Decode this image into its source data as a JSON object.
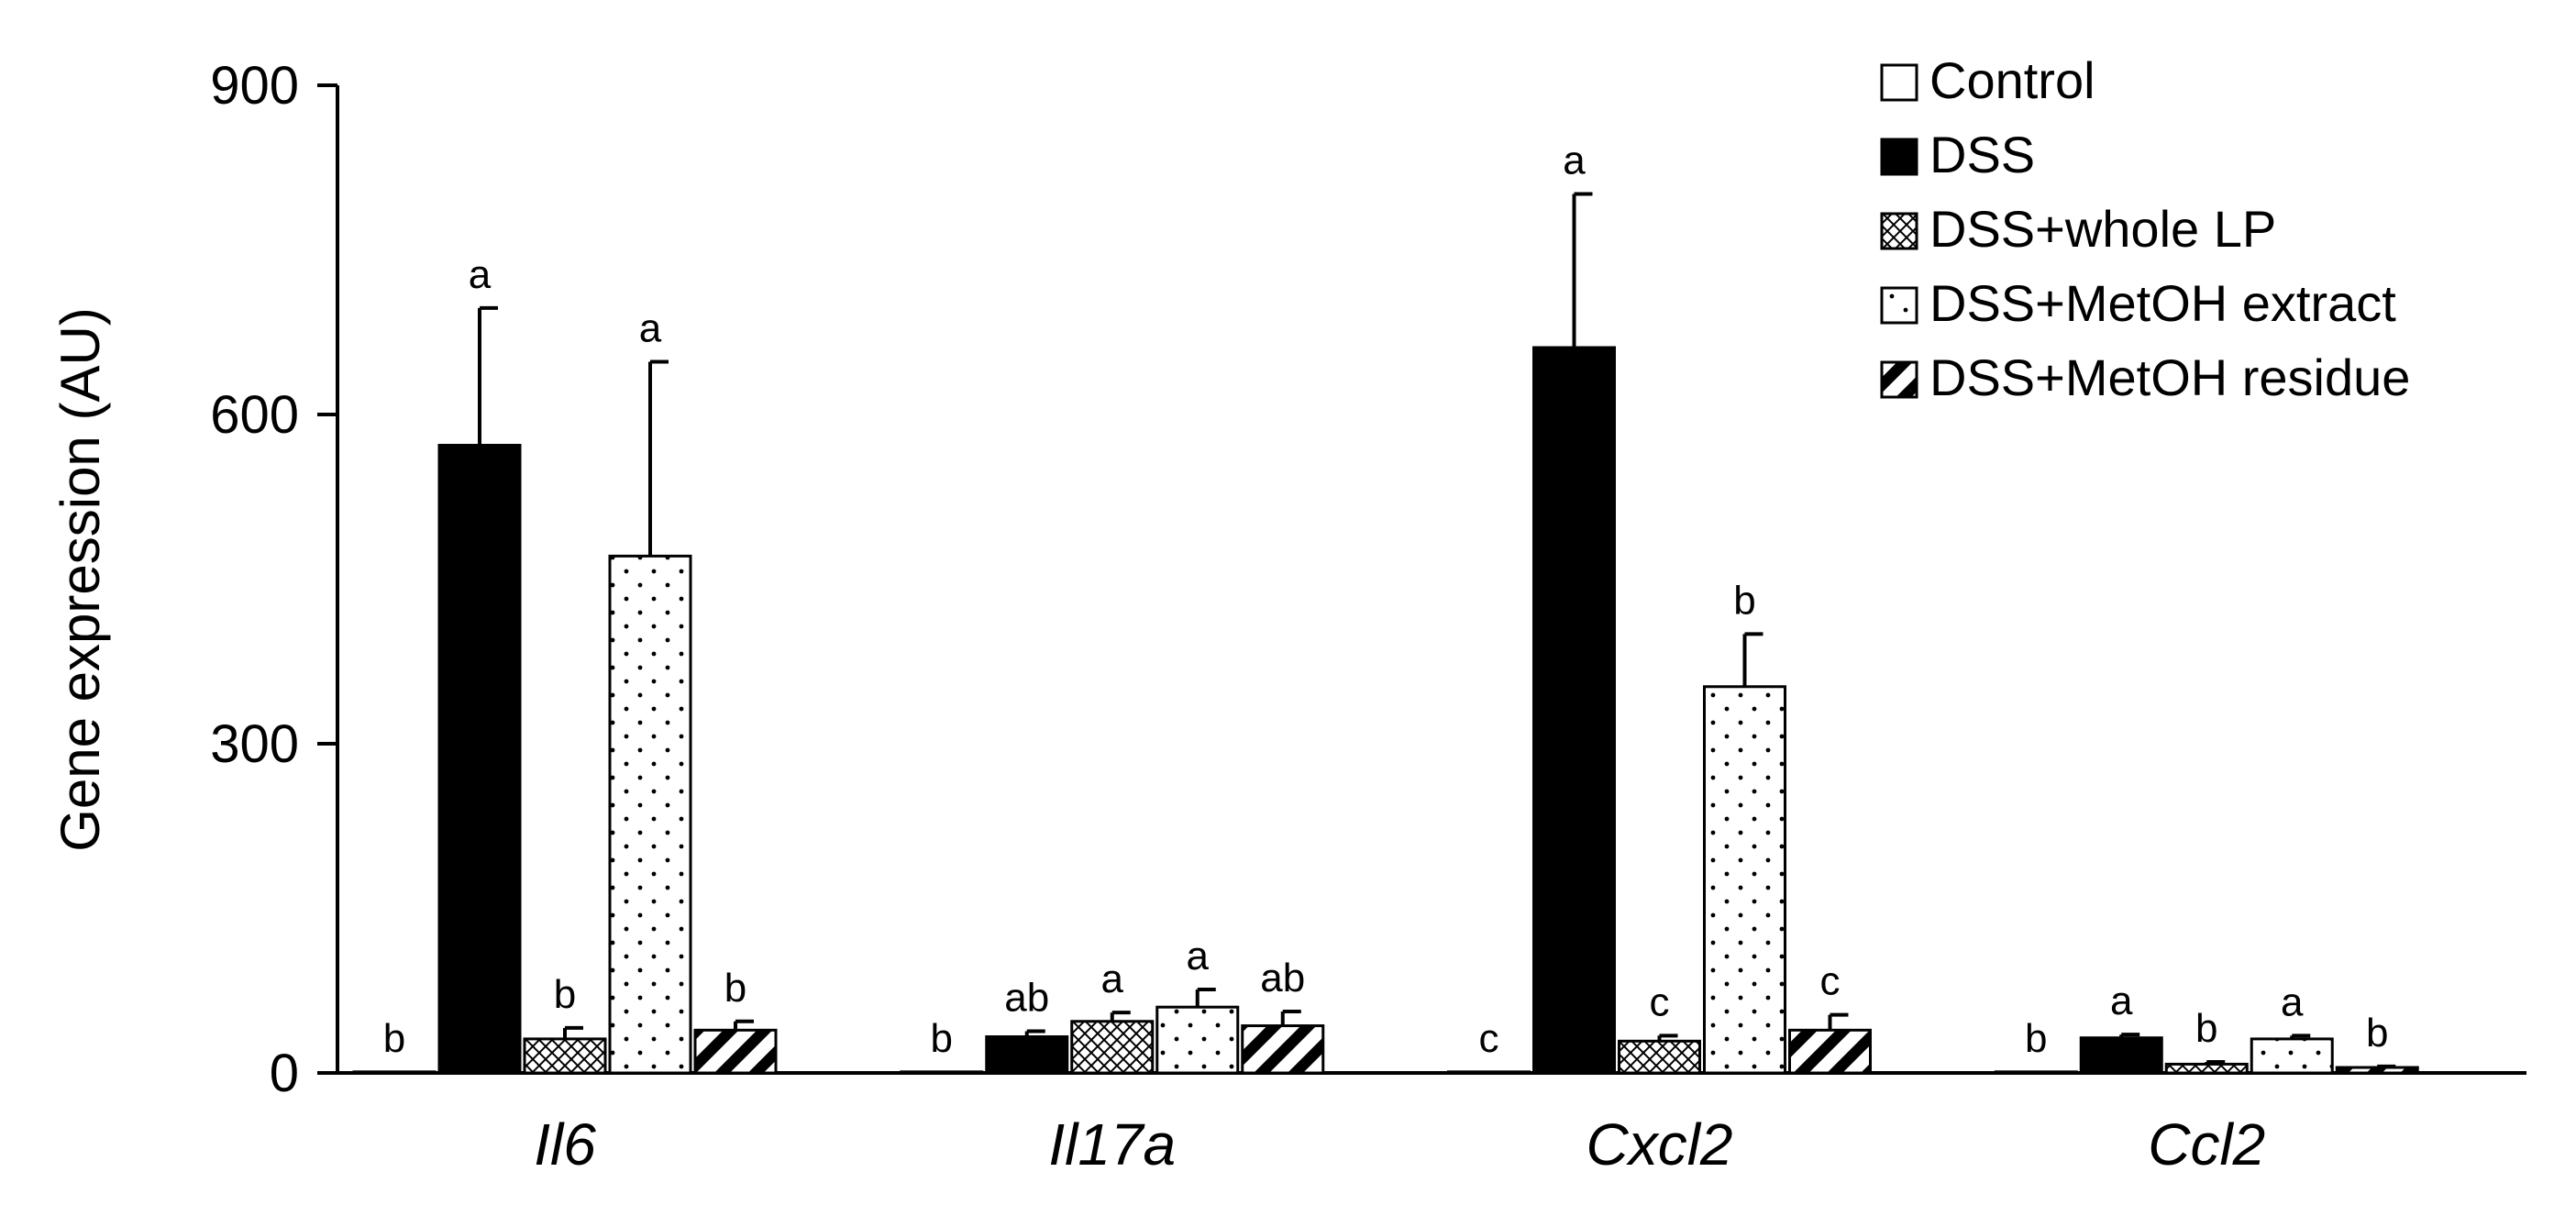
{
  "chart_data": {
    "type": "bar",
    "title": "",
    "xlabel": "",
    "ylabel": "Gene expression (AU)",
    "ylim": [
      0,
      900
    ],
    "yticks": [
      0,
      300,
      600,
      900
    ],
    "grid": false,
    "legend_position": "top-right",
    "categories": [
      "Il6",
      "Il17a",
      "Cxcl2",
      "Ccl2"
    ],
    "series": [
      {
        "name": "Control",
        "pattern": "white",
        "values": [
          1,
          1,
          1,
          1
        ],
        "errors": [
          0,
          0,
          0,
          0
        ],
        "labels": [
          "b",
          "b",
          "c",
          "b"
        ]
      },
      {
        "name": "DSS",
        "pattern": "black",
        "values": [
          572,
          33,
          661,
          32
        ],
        "errors": [
          125,
          5,
          140,
          3
        ],
        "labels": [
          "a",
          "ab",
          "a",
          "a"
        ]
      },
      {
        "name": "DSS+whole LP",
        "pattern": "crosshatch",
        "values": [
          31,
          47,
          29,
          8
        ],
        "errors": [
          10,
          8,
          5,
          2
        ],
        "labels": [
          "b",
          "a",
          "c",
          "b"
        ]
      },
      {
        "name": "DSS+MetOH extract",
        "pattern": "dots",
        "values": [
          471,
          60,
          352,
          31
        ],
        "errors": [
          177,
          16,
          48,
          3
        ],
        "labels": [
          "a",
          "a",
          "b",
          "a"
        ]
      },
      {
        "name": "DSS+MetOH residue",
        "pattern": "diagonal",
        "values": [
          39,
          43,
          39,
          5
        ],
        "errors": [
          8,
          13,
          14,
          1
        ],
        "labels": [
          "b",
          "ab",
          "c",
          "b"
        ]
      }
    ]
  }
}
